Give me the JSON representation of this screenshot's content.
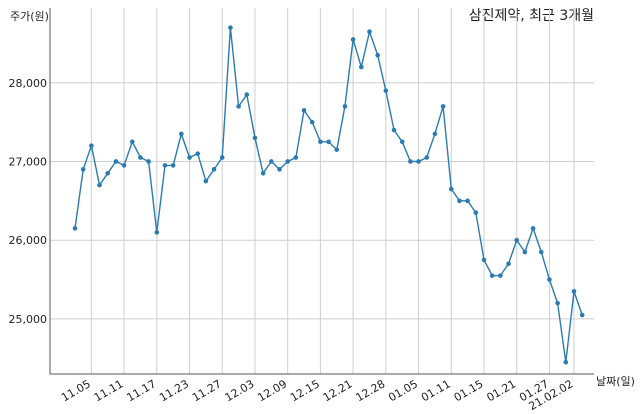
{
  "chart_data": {
    "type": "line",
    "title": "삼진제약, 최근 3개월",
    "ylabel": "주가(원)",
    "xlabel": "날짜(일)",
    "ylim": [
      24300,
      28950
    ],
    "y_ticks": [
      25000,
      26000,
      27000,
      28000
    ],
    "y_tick_labels": [
      "25,000",
      "26,000",
      "27,000",
      "28,000"
    ],
    "x_ticks": [
      {
        "index": 2,
        "label": "11.05"
      },
      {
        "index": 6,
        "label": "11.11"
      },
      {
        "index": 10,
        "label": "11.17"
      },
      {
        "index": 14,
        "label": "11.23"
      },
      {
        "index": 18,
        "label": "11.27"
      },
      {
        "index": 22,
        "label": "12.03"
      },
      {
        "index": 26,
        "label": "12.09"
      },
      {
        "index": 30,
        "label": "12.15"
      },
      {
        "index": 34,
        "label": "12.21"
      },
      {
        "index": 38,
        "label": "12.28"
      },
      {
        "index": 42,
        "label": "01.05"
      },
      {
        "index": 46,
        "label": "01.11"
      },
      {
        "index": 50,
        "label": "01.15"
      },
      {
        "index": 54,
        "label": "01.21"
      },
      {
        "index": 58,
        "label": "01.27"
      },
      {
        "index": 61,
        "label": "21.02.02"
      }
    ],
    "grid": true,
    "color": "#2b7bb0",
    "values": [
      26150,
      26900,
      27200,
      26700,
      26850,
      27000,
      26950,
      27250,
      27050,
      27000,
      26100,
      26950,
      26950,
      27350,
      27050,
      27100,
      26750,
      26900,
      27050,
      28700,
      27700,
      27850,
      27300,
      26850,
      27000,
      26900,
      27000,
      27050,
      27650,
      27500,
      27250,
      27250,
      27150,
      27700,
      28550,
      28200,
      28650,
      28350,
      27900,
      27400,
      27250,
      27000,
      27000,
      27050,
      27350,
      27700,
      26650,
      26500,
      26500,
      26350,
      25750,
      25550,
      25550,
      25700,
      26000,
      25850,
      26150,
      25850,
      25500,
      25200,
      24450,
      25350,
      25050
    ]
  }
}
